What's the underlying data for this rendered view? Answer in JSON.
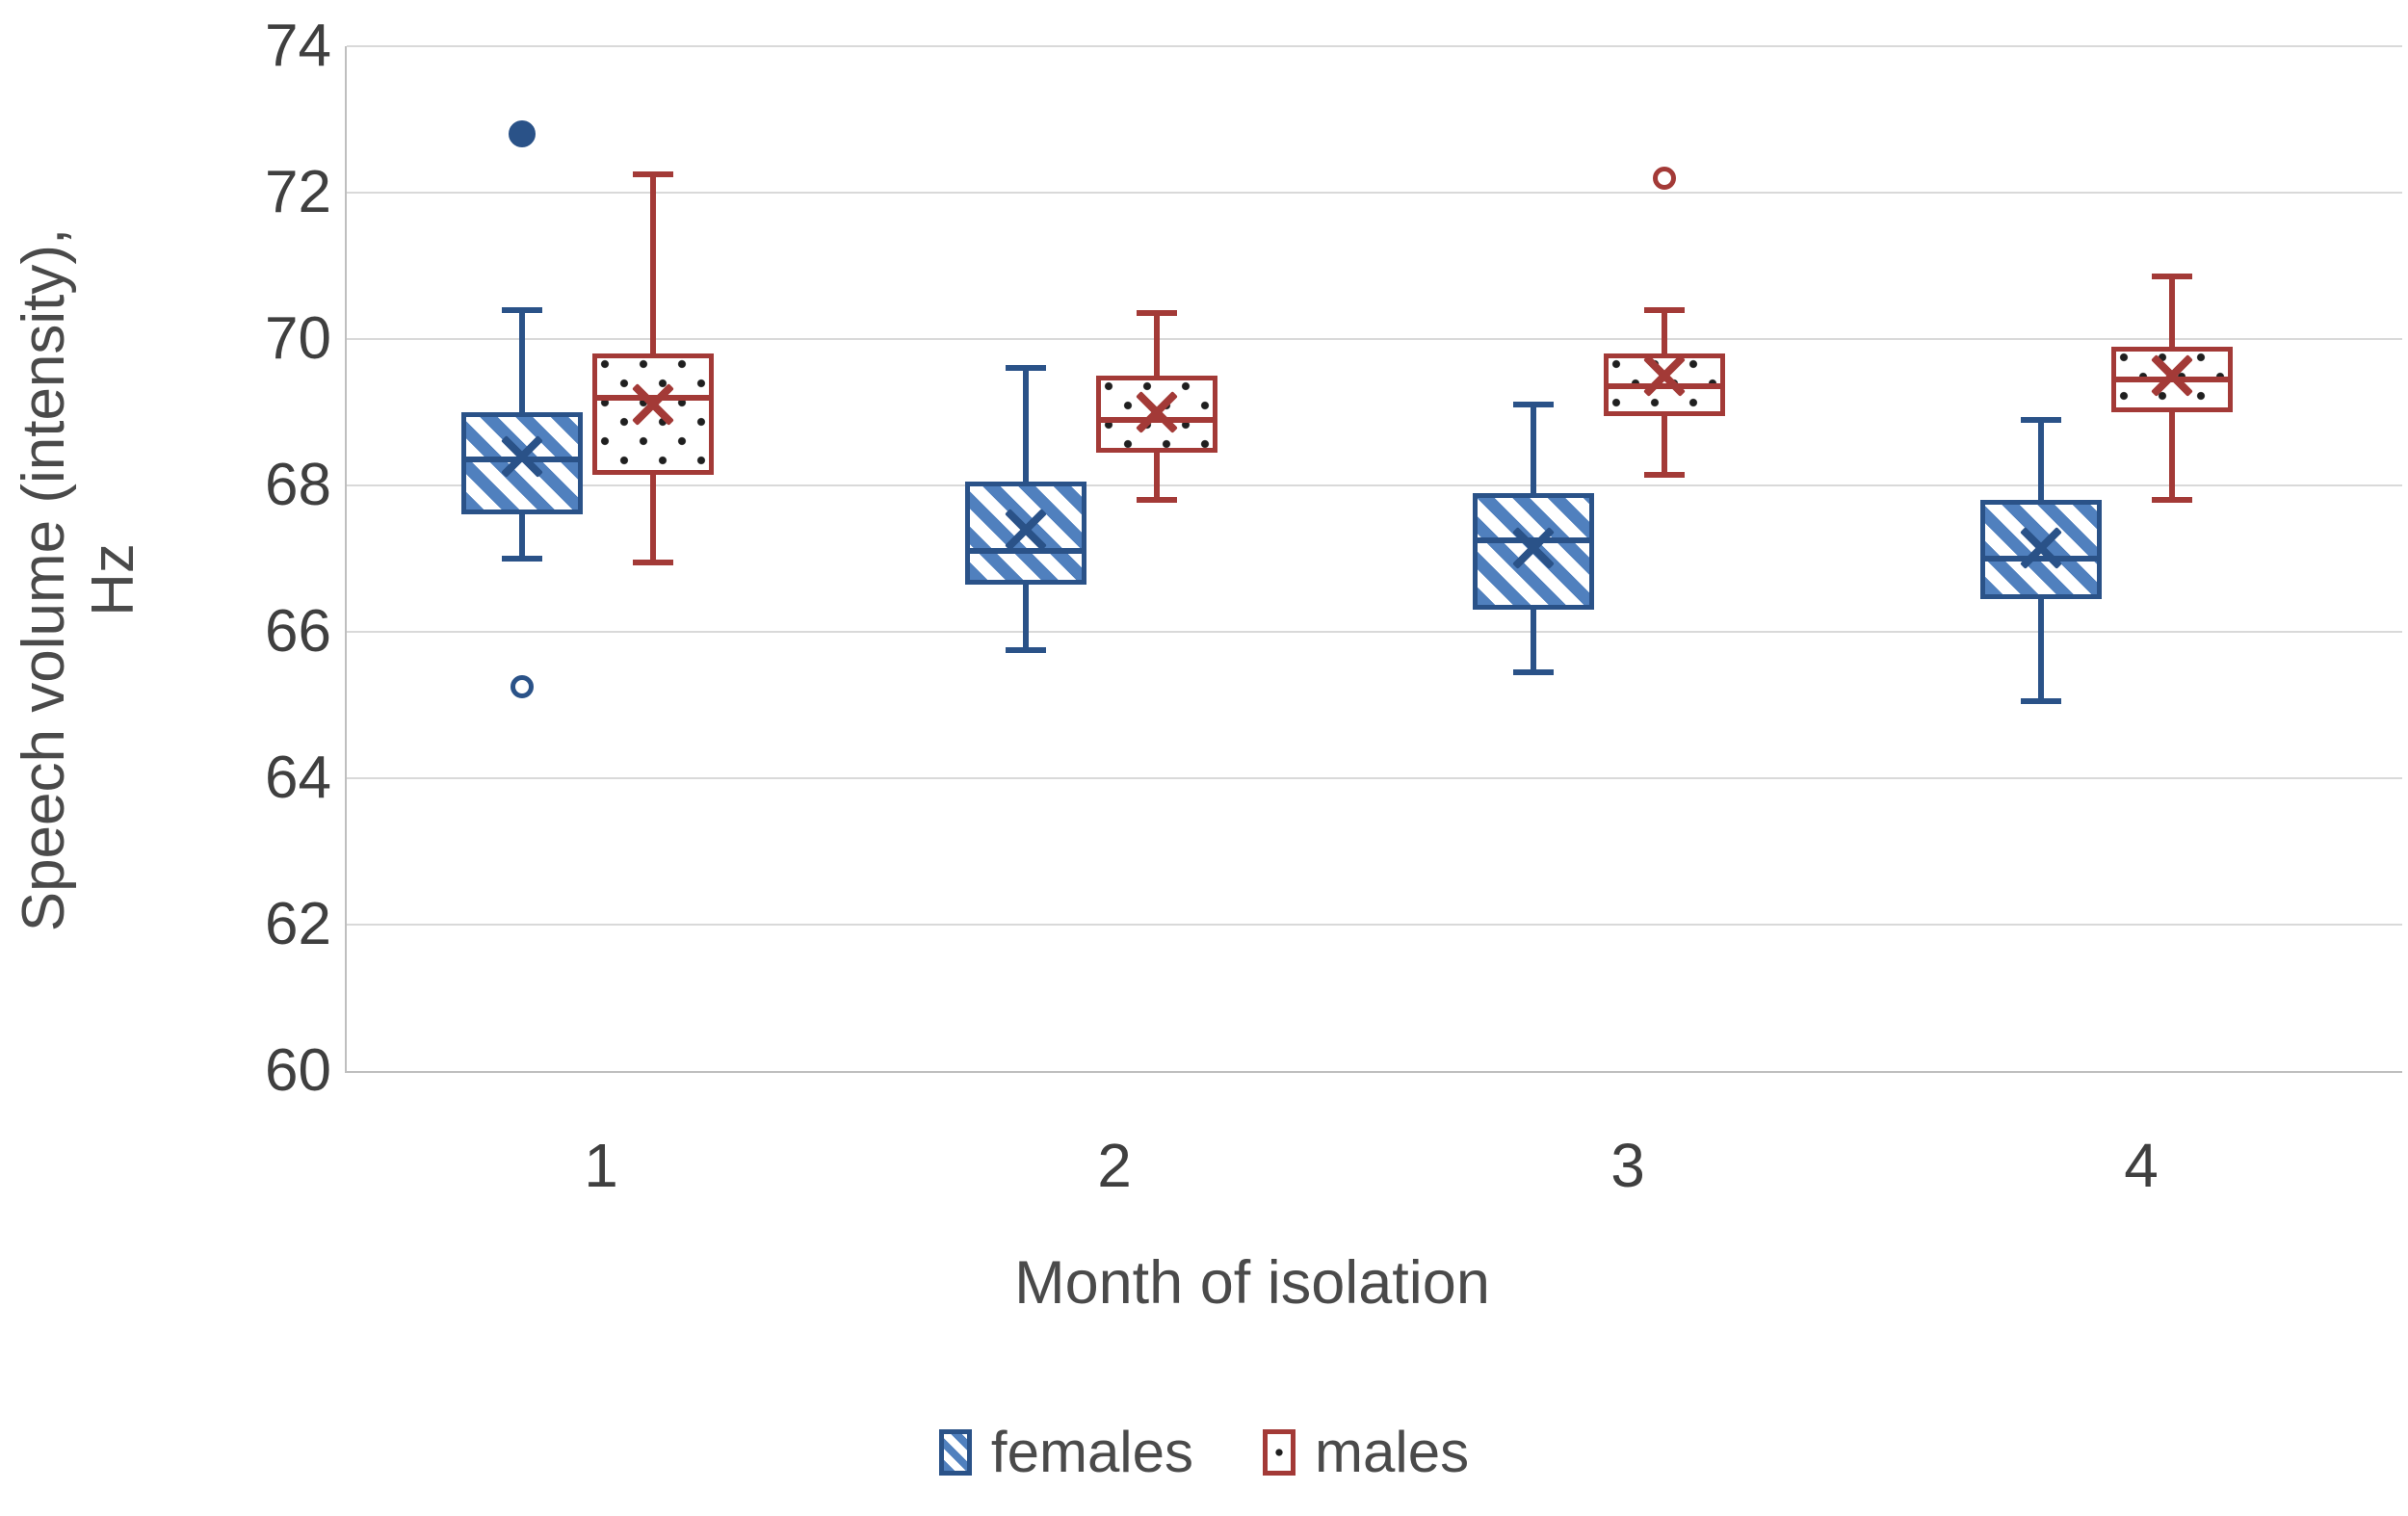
{
  "chart_data": {
    "type": "boxplot",
    "title": "",
    "xlabel": "Month of isolation",
    "ylabel_line1": "Speech volume (intensity),",
    "ylabel_line2": "Hz",
    "categories": [
      "1",
      "2",
      "3",
      "4"
    ],
    "y_axis": {
      "min": 60,
      "max": 74,
      "step": 2,
      "tick_labels": [
        "60",
        "62",
        "64",
        "66",
        "68",
        "70",
        "72",
        "74"
      ]
    },
    "grid": true,
    "legend_position": "bottom",
    "colors": {
      "females_stroke": "#2A5288",
      "females_hatch": "#5080BE",
      "males_stroke": "#A33A37",
      "males_dot": "#1F1F1F",
      "gridline": "#D9D9D9",
      "axis_line": "#BFBFBF",
      "text": "#3F3F3F"
    },
    "series": [
      {
        "name": "females",
        "pattern": "diagonal-hatch",
        "boxes": [
          {
            "category": "1",
            "whisker_low": 67.0,
            "q1": 67.6,
            "median": 68.35,
            "mean": 68.4,
            "q3": 69.0,
            "whisker_high": 70.4,
            "outliers": [
              {
                "value": 72.8,
                "style": "filled"
              },
              {
                "value": 65.25,
                "style": "open"
              }
            ]
          },
          {
            "category": "2",
            "whisker_low": 65.75,
            "q1": 66.65,
            "median": 67.1,
            "mean": 67.4,
            "q3": 68.05,
            "whisker_high": 69.6,
            "outliers": []
          },
          {
            "category": "3",
            "whisker_low": 65.45,
            "q1": 66.3,
            "median": 67.25,
            "mean": 67.15,
            "q3": 67.9,
            "whisker_high": 69.1,
            "outliers": []
          },
          {
            "category": "4",
            "whisker_low": 65.05,
            "q1": 66.45,
            "median": 67.0,
            "mean": 67.15,
            "q3": 67.8,
            "whisker_high": 68.9,
            "outliers": []
          }
        ]
      },
      {
        "name": "males",
        "pattern": "dots",
        "boxes": [
          {
            "category": "1",
            "whisker_low": 66.95,
            "q1": 68.15,
            "median": 69.2,
            "mean": 69.1,
            "q3": 69.8,
            "whisker_high": 72.25,
            "outliers": []
          },
          {
            "category": "2",
            "whisker_low": 67.8,
            "q1": 68.45,
            "median": 68.9,
            "mean": 69.0,
            "q3": 69.5,
            "whisker_high": 70.35,
            "outliers": []
          },
          {
            "category": "3",
            "whisker_low": 68.15,
            "q1": 68.95,
            "median": 69.35,
            "mean": 69.5,
            "q3": 69.8,
            "whisker_high": 70.4,
            "outliers": [
              {
                "value": 72.2,
                "style": "open"
              }
            ]
          },
          {
            "category": "4",
            "whisker_low": 67.8,
            "q1": 69.0,
            "median": 69.45,
            "mean": 69.5,
            "q3": 69.9,
            "whisker_high": 70.85,
            "outliers": []
          }
        ]
      }
    ]
  }
}
